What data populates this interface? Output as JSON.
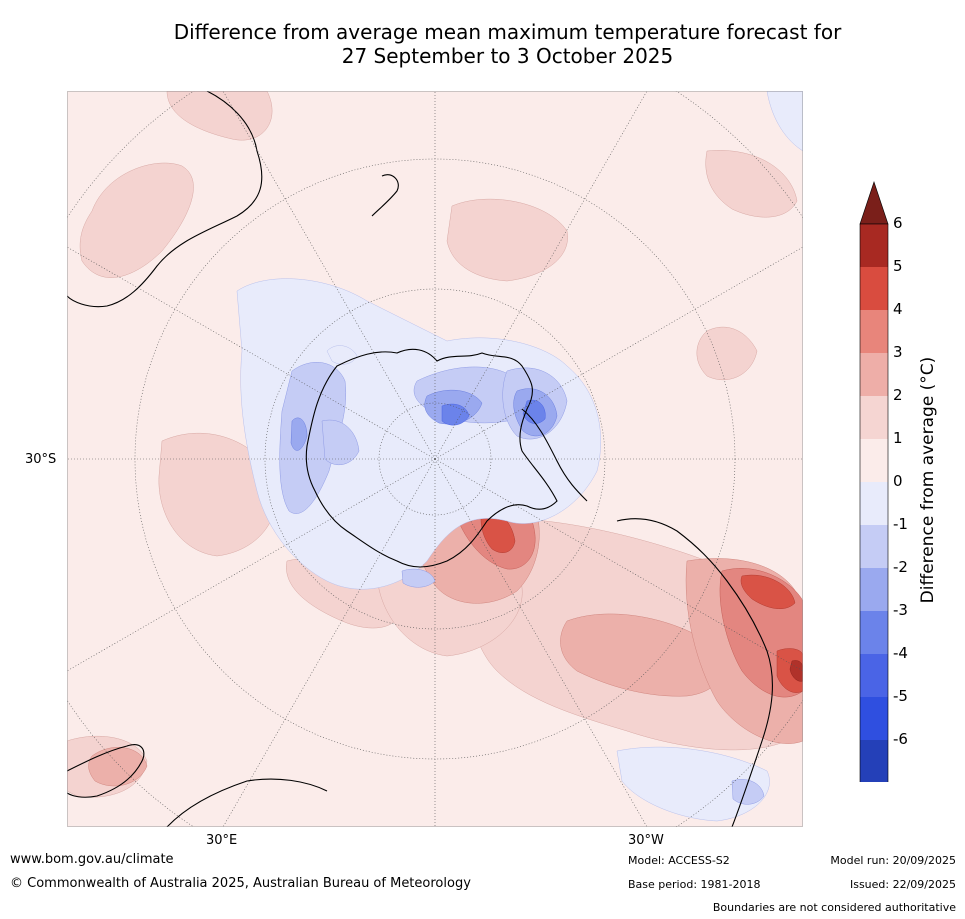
{
  "title": {
    "line1": "Difference from average mean maximum temperature forecast for",
    "line2": "27 September to 3 October 2025"
  },
  "map": {
    "lat_label": "30°S",
    "lon_labels": [
      "30°E",
      "30°W"
    ],
    "projection": "south-polar",
    "coast_color": "#000000",
    "colors": {
      "n6": "#223fa3",
      "n5": "#2f4fe0",
      "n4": "#4a64e6",
      "n3": "#6b83ea",
      "n2": "#9aa9ef",
      "n1": "#c5ccf5",
      "n0": "#e8ebfb",
      "p0": "#fbecea",
      "p1": "#f4d3d0",
      "p2": "#ecb0aa",
      "p3": "#e38680",
      "p4": "#d95346",
      "p5": "#b0322a",
      "p6": "#7a1f1a"
    }
  },
  "colorbar": {
    "title": "Difference from average (°C)",
    "tick_labels": [
      "6",
      "5",
      "4",
      "3",
      "2",
      "1",
      "0",
      "-1",
      "-2",
      "-3",
      "-4",
      "-5",
      "-6"
    ],
    "colors_top_to_bottom": [
      "#7a1f1a",
      "#a82922",
      "#d94c3f",
      "#e8857b",
      "#eeaea8",
      "#f5d5d2",
      "#fbecea",
      "#e8ebfb",
      "#c5ccf5",
      "#9aa9ef",
      "#6b83ea",
      "#4a64e6",
      "#2f4fe0",
      "#2440b8",
      "#1e2f82"
    ]
  },
  "footer": {
    "website": "www.bom.gov.au/climate",
    "copyright": "© Commonwealth of Australia 2025, Australian Bureau of Meteorology",
    "model": "Model: ACCESS-S2",
    "base_period": "Base period: 1981-2018",
    "model_run": "Model run: 20/09/2025",
    "issued": "Issued: 22/09/2025",
    "disclaimer": "Boundaries are not considered authoritative"
  }
}
